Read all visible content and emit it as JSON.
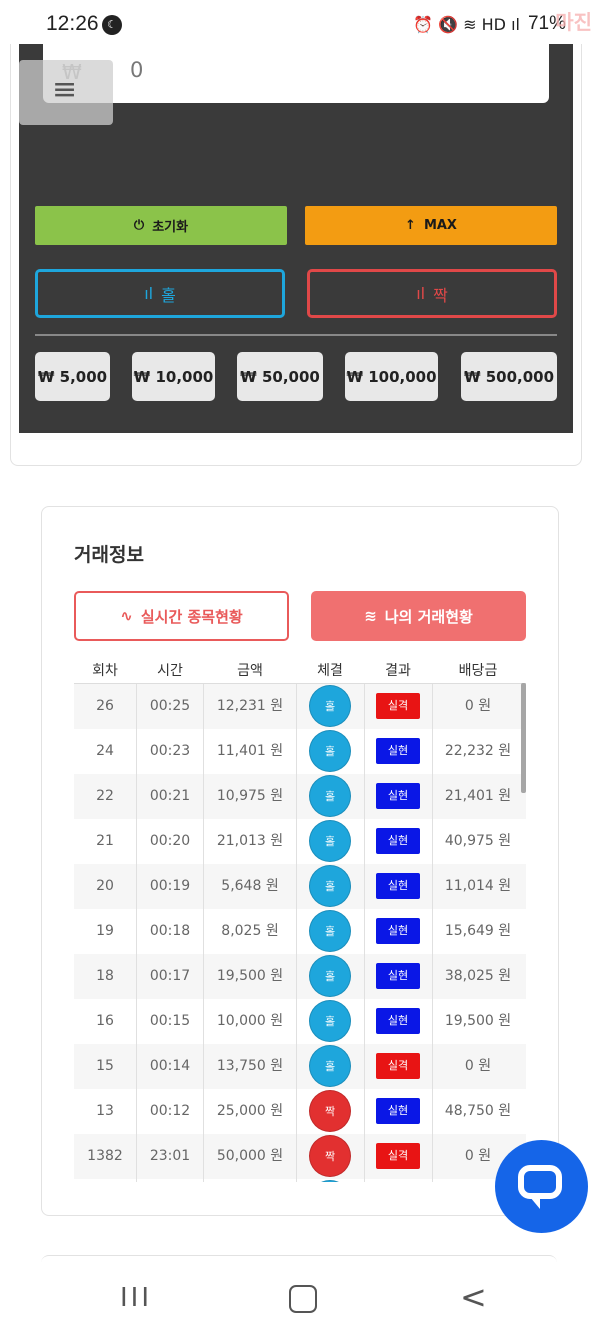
{
  "status_bar": {
    "time": "12:26",
    "moon": "☾",
    "right_icons": "⏰ 🔇 ≋ HD ıl",
    "battery": "71%",
    "watermark": "마진"
  },
  "bet_panel": {
    "currency_symbol": "₩",
    "amount_value": "0",
    "menu_icon": "≡",
    "reset_icon": "⏻",
    "reset_label": "초기화",
    "max_icon": "↑",
    "max_label": "MAX",
    "odd_icon": "ıl",
    "odd_label": "홀",
    "even_icon": "ıl",
    "even_label": "짝",
    "chips": [
      "₩ 5,000",
      "₩ 10,000",
      "₩ 50,000",
      "₩ 100,000",
      "₩ 500,000"
    ]
  },
  "trade_info": {
    "title": "거래정보",
    "live_icon": "∿",
    "live_button": "실시간 종목현황",
    "mine_icon": "≋",
    "mine_button": "나의 거래현황",
    "columns": [
      "회차",
      "시간",
      "금액",
      "체결",
      "결과",
      "배당금"
    ],
    "rows": [
      {
        "round": "26",
        "time": "00:25",
        "amount": "12,231 원",
        "pick": "홀",
        "result": "실격",
        "payout": "0 원"
      },
      {
        "round": "24",
        "time": "00:23",
        "amount": "11,401 원",
        "pick": "홀",
        "result": "실현",
        "payout": "22,232 원"
      },
      {
        "round": "22",
        "time": "00:21",
        "amount": "10,975 원",
        "pick": "홀",
        "result": "실현",
        "payout": "21,401 원"
      },
      {
        "round": "21",
        "time": "00:20",
        "amount": "21,013 원",
        "pick": "홀",
        "result": "실현",
        "payout": "40,975 원"
      },
      {
        "round": "20",
        "time": "00:19",
        "amount": "5,648 원",
        "pick": "홀",
        "result": "실현",
        "payout": "11,014 원"
      },
      {
        "round": "19",
        "time": "00:18",
        "amount": "8,025 원",
        "pick": "홀",
        "result": "실현",
        "payout": "15,649 원"
      },
      {
        "round": "18",
        "time": "00:17",
        "amount": "19,500 원",
        "pick": "홀",
        "result": "실현",
        "payout": "38,025 원"
      },
      {
        "round": "16",
        "time": "00:15",
        "amount": "10,000 원",
        "pick": "홀",
        "result": "실현",
        "payout": "19,500 원"
      },
      {
        "round": "15",
        "time": "00:14",
        "amount": "13,750 원",
        "pick": "홀",
        "result": "실격",
        "payout": "0 원"
      },
      {
        "round": "13",
        "time": "00:12",
        "amount": "25,000 원",
        "pick": "짝",
        "result": "실현",
        "payout": "48,750 원"
      },
      {
        "round": "1382",
        "time": "23:01",
        "amount": "50,000 원",
        "pick": "짝",
        "result": "실격",
        "payout": "0 원"
      },
      {
        "round": "",
        "time": "",
        "amount": "",
        "pick": "홀",
        "result": "",
        "payout": ""
      }
    ]
  },
  "colors": {
    "odd": "#1ea6dc",
    "even": "#e23030",
    "win": "#0a17e6",
    "lose": "#e81414"
  },
  "nav": {
    "recent": "III",
    "back": "<"
  }
}
